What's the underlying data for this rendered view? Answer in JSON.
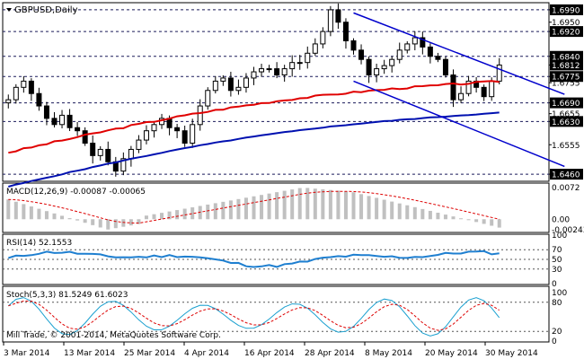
{
  "title": "GBPUSD,Daily",
  "copyright": "Mill Trade, © 2001-2014, MetaQuotes Software Corp.",
  "colors": {
    "background": "#ffffff",
    "candle": "#000000",
    "ma_fast": "#e00000",
    "ma_slow": "#0010b0",
    "trendline": "#0000cc",
    "hline": "#1a1a5a",
    "macd_hist": "#c0c0c0",
    "signal": "#dd0000",
    "rsi": "#1e7fd0",
    "stoch_main": "#1aa0d0",
    "stoch_signal": "#dd0000",
    "price_box": "#000000"
  },
  "x_axis": {
    "labels": [
      "3 Mar 2014",
      "13 Mar 2014",
      "25 Mar 2014",
      "4 Apr 2014",
      "16 Apr 2014",
      "28 Apr 2014",
      "8 May 2014",
      "20 May 2014",
      "30 May 2014"
    ]
  },
  "chart_data": [
    {
      "type": "candlestick",
      "title": "GBPUSD,Daily",
      "ylim": [
        1.644,
        1.701
      ],
      "price_axis": [
        {
          "value": 1.699,
          "label": "1.6990",
          "boxed": true
        },
        {
          "value": 1.695,
          "label": "1.6950",
          "boxed": false
        },
        {
          "value": 1.692,
          "label": "1.6920",
          "boxed": true
        },
        {
          "value": 1.684,
          "label": "1.6840",
          "boxed": true
        },
        {
          "value": 1.6812,
          "label": "1.6812",
          "boxed": true
        },
        {
          "value": 1.6775,
          "label": "1.6775",
          "boxed": true
        },
        {
          "value": 1.6755,
          "label": "1.6755",
          "boxed": false
        },
        {
          "value": 1.669,
          "label": "1.6690",
          "boxed": true
        },
        {
          "value": 1.6655,
          "label": "1.6655",
          "boxed": false
        },
        {
          "value": 1.663,
          "label": "1.6630",
          "boxed": true
        },
        {
          "value": 1.6555,
          "label": "1.6555",
          "boxed": false
        },
        {
          "value": 1.646,
          "label": "1.6460",
          "boxed": true
        }
      ],
      "horizontal_levels": [
        1.699,
        1.692,
        1.684,
        1.6775,
        1.669,
        1.663,
        1.646
      ],
      "closes": [
        1.67,
        1.674,
        1.676,
        1.672,
        1.668,
        1.664,
        1.662,
        1.665,
        1.661,
        1.66,
        1.656,
        1.652,
        1.654,
        1.65,
        1.647,
        1.651,
        1.654,
        1.657,
        1.66,
        1.662,
        1.664,
        1.661,
        1.66,
        1.656,
        1.662,
        1.668,
        1.673,
        1.676,
        1.677,
        1.673,
        1.674,
        1.677,
        1.679,
        1.68,
        1.68,
        1.678,
        1.68,
        1.682,
        1.682,
        1.685,
        1.688,
        1.692,
        1.699,
        1.695,
        1.689,
        1.686,
        1.683,
        1.678,
        1.68,
        1.681,
        1.683,
        1.686,
        1.688,
        1.69,
        1.687,
        1.684,
        1.683,
        1.678,
        1.67,
        1.672,
        1.676,
        1.674,
        1.671,
        1.676,
        1.6812
      ],
      "ma_fast": {
        "start": 1.653,
        "end": 1.68
      },
      "ma_slow": {
        "start": 1.642,
        "end": 1.67
      },
      "trendlines": [
        {
          "from": [
            45,
            1.698
          ],
          "to": [
            67,
            1.677
          ]
        },
        {
          "from": [
            45,
            1.676
          ],
          "to": [
            67,
            1.654
          ]
        }
      ]
    },
    {
      "type": "histogram",
      "title": "MACD(12,26,9) -0.00087 -0.00065",
      "ylim": [
        -0.0028,
        0.008
      ],
      "axis": [
        {
          "value": 0.0072,
          "label": "0.0072"
        },
        {
          "value": 0.0,
          "label": "0.00"
        },
        {
          "value": -0.00243,
          "label": "-0.00243"
        }
      ],
      "histogram_peak": 0.0072,
      "histogram_trough": -0.0024
    },
    {
      "type": "line",
      "title": "RSI(14) 52.1553",
      "ylim": [
        0,
        100
      ],
      "axis": [
        {
          "value": 100,
          "label": "100"
        },
        {
          "value": 70,
          "label": "70"
        },
        {
          "value": 50,
          "label": "50"
        },
        {
          "value": 30,
          "label": "30"
        },
        {
          "value": 0,
          "label": "0"
        }
      ],
      "levels": [
        70,
        50,
        30
      ]
    },
    {
      "type": "line",
      "title": "Stoch(5,3,3) 81.5249 61.6023",
      "ylim": [
        0,
        100
      ],
      "axis": [
        {
          "value": 100,
          "label": "100"
        },
        {
          "value": 80,
          "label": "80"
        },
        {
          "value": 20,
          "label": "20"
        },
        {
          "value": 0,
          "label": "0"
        }
      ],
      "levels": [
        80,
        20
      ]
    }
  ]
}
